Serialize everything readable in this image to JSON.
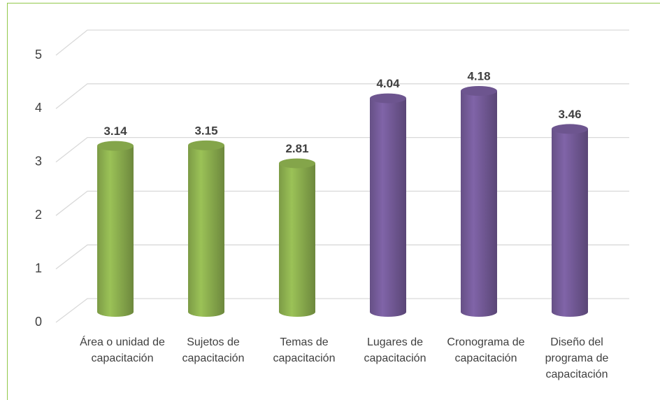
{
  "chart_data": {
    "type": "bar",
    "categories": [
      "Área o unidad de capacitación",
      "Sujetos de capacitación",
      "Temas de capacitación",
      "Lugares de capacitación",
      "Cronograma de capacitación",
      "Diseño del programa de capacitación"
    ],
    "values": [
      3.14,
      3.15,
      2.81,
      4.04,
      4.18,
      3.46
    ],
    "colors": [
      "#9bc257",
      "#9bc257",
      "#9bc257",
      "#8064a8",
      "#8064a8",
      "#8064a8"
    ],
    "ylim": [
      0,
      5
    ],
    "yticks": [
      0,
      1,
      2,
      3,
      4,
      5
    ],
    "grid": true
  }
}
